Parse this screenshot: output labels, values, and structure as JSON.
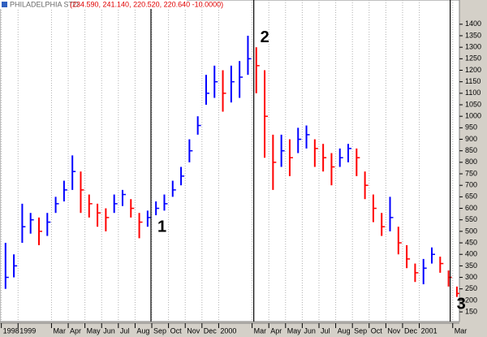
{
  "chart_data": {
    "type": "ohlc",
    "title": "PHILADELPHIA STO",
    "subtitle": "(234.590, 241.140, 220.520, 220.640 -10.0000)",
    "x": [
      0.25,
      0.75,
      1.25,
      1.75,
      2.25,
      2.75,
      3.25,
      3.75,
      4.25,
      4.75,
      5.25,
      5.75,
      6.25,
      6.75,
      7.25,
      7.75,
      8.25,
      8.75,
      9.25,
      9.75,
      10.25,
      10.75,
      11.25,
      11.75,
      12.25,
      12.75,
      13.25,
      13.75,
      14.25,
      14.75,
      15.25,
      15.75,
      16.25,
      16.75,
      17.25,
      17.75,
      18.25,
      18.75,
      19.25,
      19.75,
      20.25,
      20.75,
      21.25,
      21.75,
      22.25,
      22.75,
      23.25,
      23.75,
      24.25,
      24.75,
      25.25,
      25.75,
      26.25,
      26.75,
      27.25
    ],
    "high": [
      450,
      400,
      620,
      580,
      560,
      580,
      650,
      720,
      830,
      760,
      660,
      620,
      600,
      660,
      680,
      640,
      580,
      590,
      630,
      660,
      720,
      780,
      900,
      1000,
      1180,
      1220,
      1200,
      1220,
      1240,
      1350,
      1300,
      1200,
      920,
      920,
      900,
      950,
      960,
      900,
      880,
      840,
      860,
      880,
      860,
      760,
      660,
      580,
      650,
      520,
      440,
      360,
      380,
      430,
      390,
      330,
      260
    ],
    "low": [
      250,
      300,
      450,
      490,
      440,
      480,
      580,
      630,
      680,
      580,
      560,
      520,
      500,
      580,
      610,
      560,
      470,
      520,
      570,
      590,
      650,
      700,
      800,
      920,
      1050,
      1080,
      1020,
      1060,
      1080,
      1180,
      1100,
      820,
      680,
      780,
      740,
      840,
      860,
      780,
      760,
      700,
      780,
      800,
      740,
      640,
      540,
      480,
      500,
      400,
      340,
      280,
      270,
      360,
      320,
      260,
      215
    ],
    "close": [
      300,
      350,
      520,
      550,
      500,
      540,
      620,
      680,
      760,
      680,
      620,
      580,
      560,
      620,
      660,
      600,
      540,
      560,
      600,
      620,
      680,
      740,
      850,
      960,
      1100,
      1150,
      1100,
      1150,
      1170,
      1250,
      1220,
      1000,
      800,
      850,
      820,
      900,
      920,
      860,
      820,
      780,
      820,
      860,
      820,
      700,
      600,
      520,
      560,
      450,
      380,
      320,
      340,
      400,
      360,
      300,
      230
    ],
    "up_color": "#0000ff",
    "down_color": "#ff0000",
    "xlim": [
      -0.08,
      27.4
    ],
    "xticks": [
      {
        "value": 0,
        "label": "1998"
      },
      {
        "value": 1,
        "label": "1999"
      },
      {
        "value": 3,
        "label": "Mar"
      },
      {
        "value": 4,
        "label": "Apr"
      },
      {
        "value": 5,
        "label": "May"
      },
      {
        "value": 6,
        "label": "Jun"
      },
      {
        "value": 7,
        "label": "Jul"
      },
      {
        "value": 8,
        "label": "Aug"
      },
      {
        "value": 9,
        "label": "Sep"
      },
      {
        "value": 10,
        "label": "Oct"
      },
      {
        "value": 11,
        "label": "Nov"
      },
      {
        "value": 12,
        "label": "Dec"
      },
      {
        "value": 13,
        "label": "2000"
      },
      {
        "value": 15,
        "label": "Mar"
      },
      {
        "value": 16,
        "label": "Apr"
      },
      {
        "value": 17,
        "label": "May"
      },
      {
        "value": 18,
        "label": "Jun"
      },
      {
        "value": 19,
        "label": "Jul"
      },
      {
        "value": 20,
        "label": "Aug"
      },
      {
        "value": 21,
        "label": "Sep"
      },
      {
        "value": 22,
        "label": "Oct"
      },
      {
        "value": 23,
        "label": "Nov"
      },
      {
        "value": 24,
        "label": "Dec"
      },
      {
        "value": 25,
        "label": "2001"
      },
      {
        "value": 27,
        "label": "Mar"
      }
    ],
    "ylim": [
      122,
      1470
    ],
    "yticks": [
      150,
      200,
      250,
      300,
      350,
      400,
      450,
      500,
      550,
      600,
      650,
      700,
      750,
      800,
      850,
      900,
      950,
      1000,
      1050,
      1100,
      1150,
      1200,
      1250,
      1300,
      1350,
      1400
    ],
    "grid": true,
    "annotations": [
      {
        "label": "1",
        "x": 8.95,
        "y": 517
      },
      {
        "label": "2",
        "x": 15.1,
        "y": 1340
      },
      {
        "label": "3",
        "x": 26.85,
        "y": 182
      }
    ]
  }
}
